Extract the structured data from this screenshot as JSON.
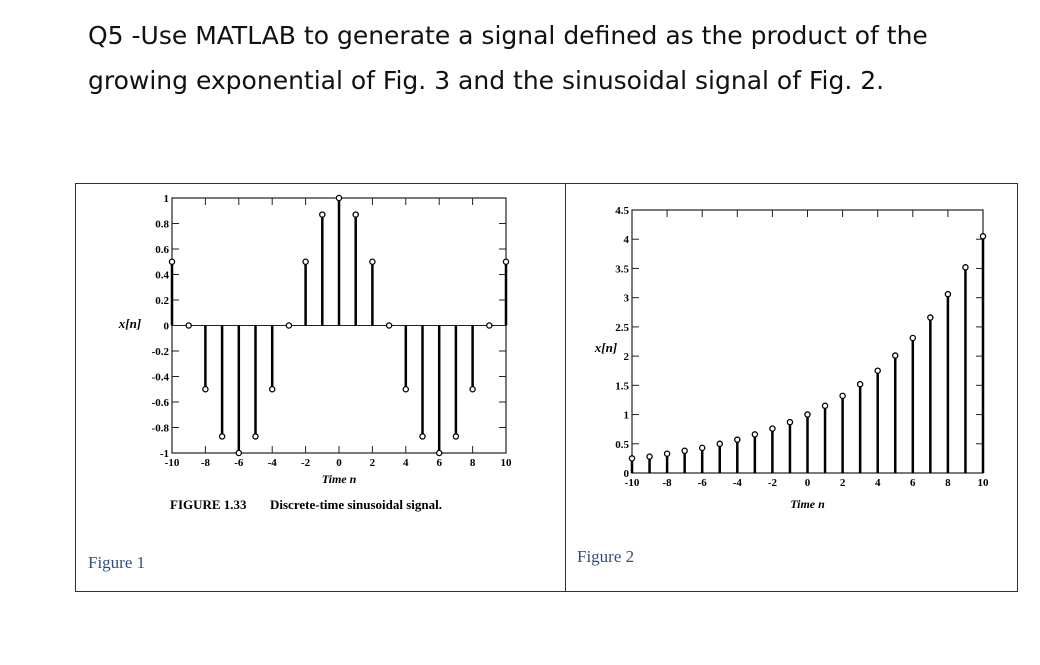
{
  "question": [
    "Q5 -Use MATLAB to generate a signal defined as the product of the",
    "growing exponential of Fig. 3 and the sinusoidal signal of Fig. 2."
  ],
  "figures": [
    {
      "label": "Figure 1",
      "chart": {
        "type": "stem",
        "figure_number": "FIGURE 1.33",
        "caption": "Discrete-time sinusoidal signal.",
        "xlabel": "Time n",
        "ylabel": "x[n]",
        "x": [
          -10,
          -9,
          -8,
          -7,
          -6,
          -5,
          -4,
          -3,
          -2,
          -1,
          0,
          1,
          2,
          3,
          4,
          5,
          6,
          7,
          8,
          9,
          10
        ],
        "values": [
          0.5,
          0,
          -0.5,
          -0.87,
          -1,
          -0.87,
          -0.5,
          0,
          0.5,
          0.87,
          1,
          0.87,
          0.5,
          0,
          -0.5,
          -0.87,
          -1,
          -0.87,
          -0.5,
          0,
          0.5
        ],
        "xlim": [
          -10,
          10
        ],
        "ylim": [
          -1,
          1
        ],
        "xticks": [
          -10,
          -8,
          -6,
          -4,
          -2,
          0,
          2,
          4,
          6,
          8,
          10
        ],
        "yticks": [
          -1,
          -0.8,
          -0.6,
          -0.4,
          -0.2,
          0,
          0.2,
          0.4,
          0.6,
          0.8,
          1
        ],
        "color": "#000000",
        "grid": false
      }
    },
    {
      "label": "Figure 2",
      "chart": {
        "type": "stem",
        "xlabel": "Time n",
        "ylabel": "x[n]",
        "x": [
          -10,
          -9,
          -8,
          -7,
          -6,
          -5,
          -4,
          -3,
          -2,
          -1,
          0,
          1,
          2,
          3,
          4,
          5,
          6,
          7,
          8,
          9,
          10
        ],
        "values": [
          0.25,
          0.28,
          0.33,
          0.38,
          0.43,
          0.5,
          0.57,
          0.66,
          0.76,
          0.87,
          1,
          1.15,
          1.32,
          1.52,
          1.75,
          2.01,
          2.31,
          2.66,
          3.06,
          3.52,
          4.05
        ],
        "xlim": [
          -10,
          10
        ],
        "ylim": [
          0,
          4.5
        ],
        "xticks": [
          -10,
          -8,
          -6,
          -4,
          -2,
          0,
          2,
          4,
          6,
          8,
          10
        ],
        "yticks": [
          0,
          0.5,
          1,
          1.5,
          2,
          2.5,
          3,
          3.5,
          4,
          4.5
        ],
        "color": "#000000",
        "grid": false
      }
    }
  ]
}
